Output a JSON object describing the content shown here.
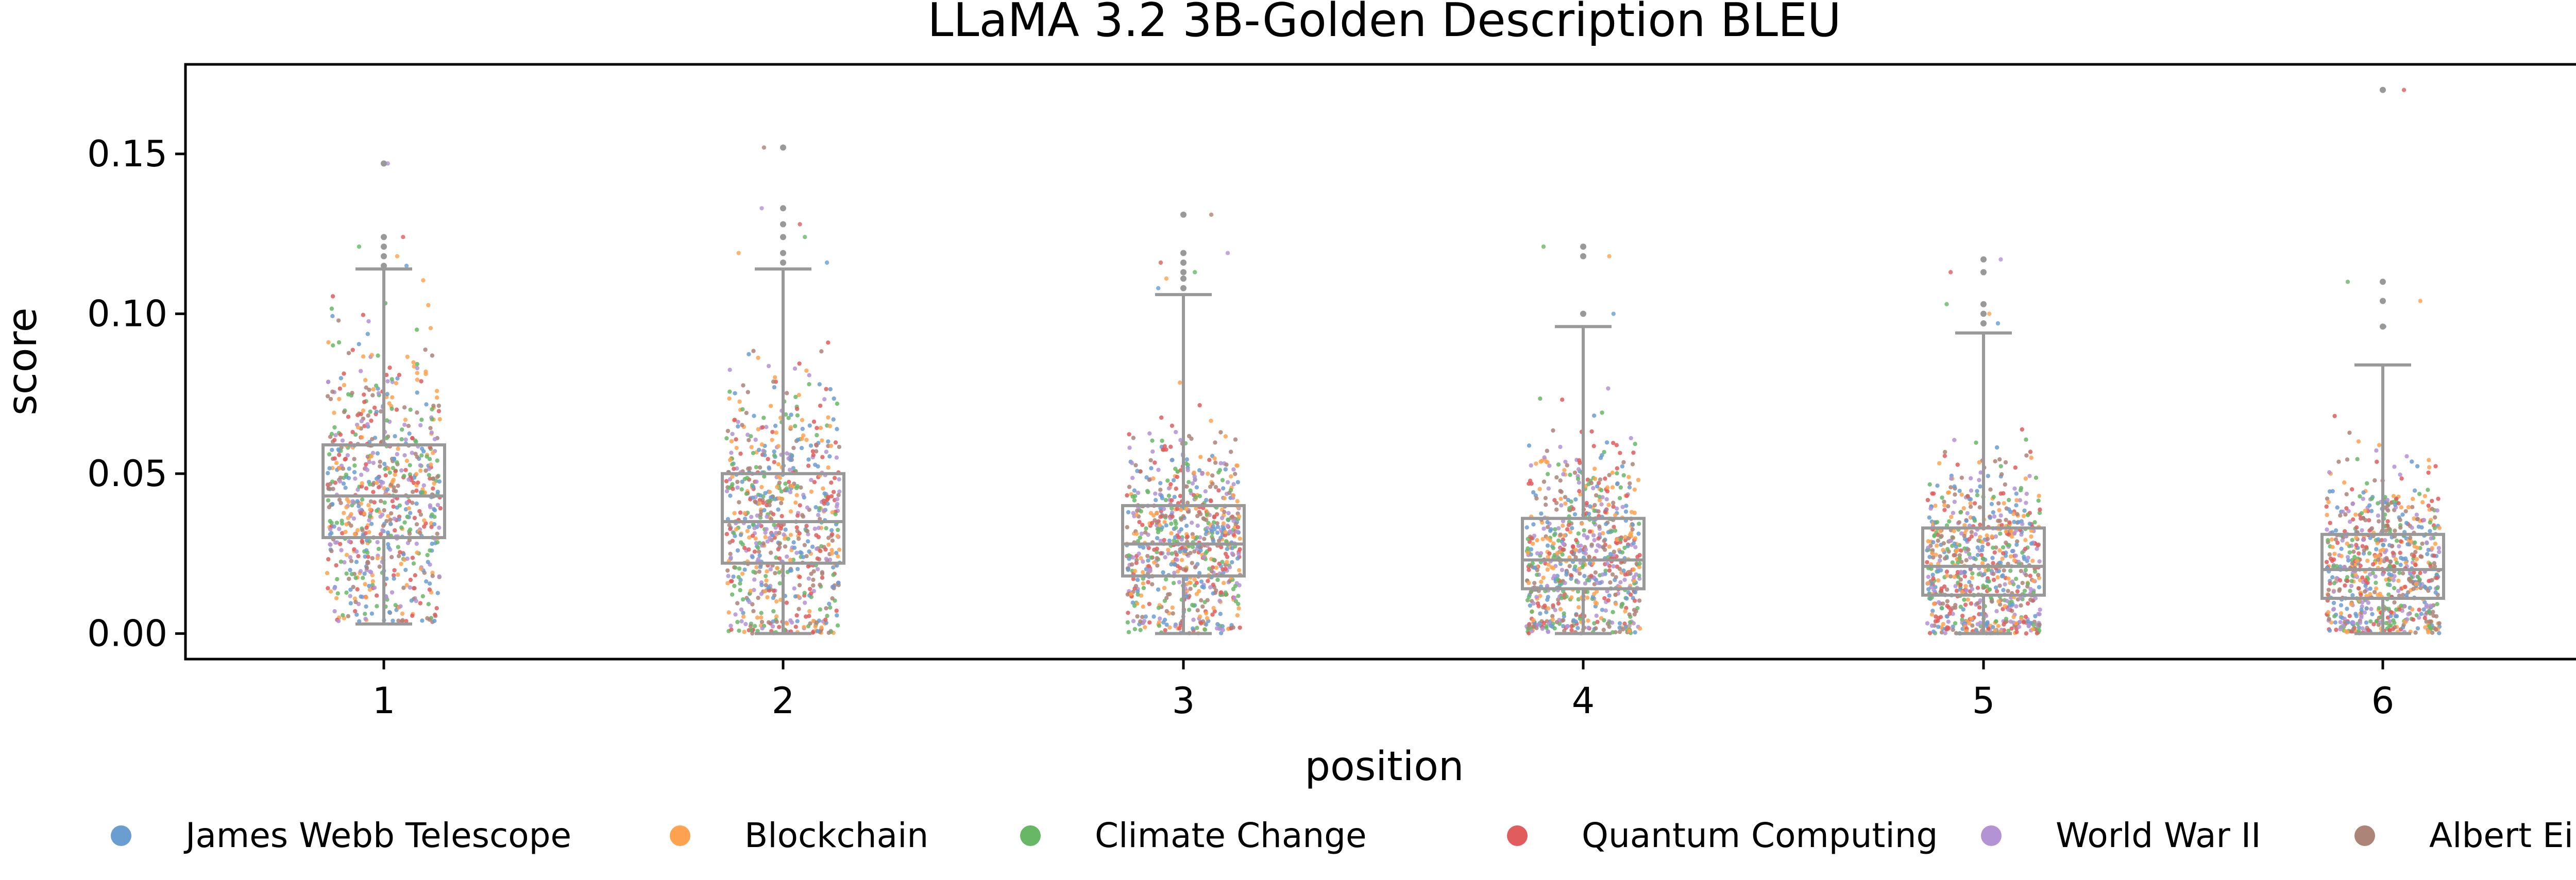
{
  "chart_data": {
    "type": "box+strip",
    "title": "LLaMA 3.2 3B-Golden Description BLEU",
    "xlabel": "position",
    "ylabel": "score",
    "categories": [
      "1",
      "2",
      "3",
      "4",
      "5",
      "6"
    ],
    "ylim": [
      -0.008,
      0.178
    ],
    "yticks": [
      0.0,
      0.05,
      0.1,
      0.15
    ],
    "ytick_labels": [
      "0.00",
      "0.05",
      "0.10",
      "0.15"
    ],
    "grid": false,
    "legend_position": "bottom",
    "box_color": "#999999",
    "boxes": [
      {
        "position": "1",
        "whisker_low": 0.003,
        "q1": 0.03,
        "median": 0.043,
        "q3": 0.059,
        "whisker_high": 0.114,
        "outliers": [
          0.115,
          0.118,
          0.121,
          0.124,
          0.147
        ]
      },
      {
        "position": "2",
        "whisker_low": 0.0,
        "q1": 0.022,
        "median": 0.035,
        "q3": 0.05,
        "whisker_high": 0.114,
        "outliers": [
          0.116,
          0.119,
          0.124,
          0.128,
          0.133,
          0.152
        ]
      },
      {
        "position": "3",
        "whisker_low": 0.0,
        "q1": 0.018,
        "median": 0.028,
        "q3": 0.04,
        "whisker_high": 0.106,
        "outliers": [
          0.108,
          0.111,
          0.113,
          0.116,
          0.119,
          0.131
        ]
      },
      {
        "position": "4",
        "whisker_low": 0.0,
        "q1": 0.014,
        "median": 0.023,
        "q3": 0.036,
        "whisker_high": 0.096,
        "outliers": [
          0.1,
          0.118,
          0.121
        ]
      },
      {
        "position": "5",
        "whisker_low": 0.0,
        "q1": 0.012,
        "median": 0.021,
        "q3": 0.033,
        "whisker_high": 0.094,
        "outliers": [
          0.097,
          0.1,
          0.103,
          0.113,
          0.117
        ]
      },
      {
        "position": "6",
        "whisker_low": 0.0,
        "q1": 0.011,
        "median": 0.02,
        "q3": 0.031,
        "whisker_high": 0.084,
        "outliers": [
          0.096,
          0.104,
          0.11,
          0.17
        ]
      }
    ],
    "series": [
      {
        "name": "James Webb Telescope",
        "color": "#6a9dd0"
      },
      {
        "name": "Blockchain",
        "color": "#ffa24f"
      },
      {
        "name": "Climate Change",
        "color": "#67b767"
      },
      {
        "name": "Quantum Computing",
        "color": "#e05c5d"
      },
      {
        "name": "World War II",
        "color": "#b393d4"
      },
      {
        "name": "Albert Einstein",
        "color": "#ad8478"
      }
    ]
  }
}
